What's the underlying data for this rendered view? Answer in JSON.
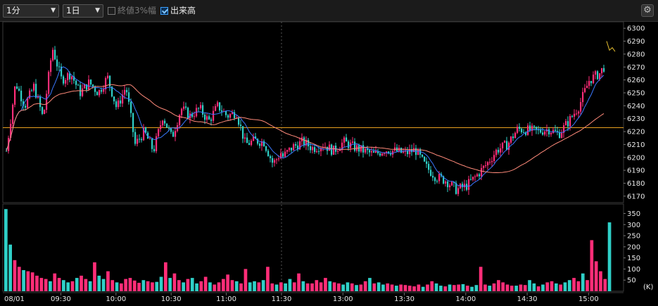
{
  "toolbar": {
    "interval_select": "1分",
    "period_select": "1日",
    "closing3pct_label": "終値3%幅",
    "volume_label": "出来高"
  },
  "chart_data": [
    {
      "type": "candlestick",
      "title": "",
      "x_tick_labels": [
        "08/01",
        "09:30",
        "10:00",
        "10:30",
        "11:00",
        "11:30",
        "13:00",
        "13:30",
        "14:00",
        "14:30",
        "15:00"
      ],
      "y_tick_labels": [
        "6300",
        "6290",
        "6280",
        "6270",
        "6260",
        "6250",
        "6240",
        "6230",
        "6220",
        "6210",
        "6200",
        "6190",
        "6180",
        "6170"
      ],
      "ylim": [
        6165,
        6305
      ],
      "reference_line": 6223,
      "close_path": [
        [
          "09:00",
          6205
        ],
        [
          "09:05",
          6258
        ],
        [
          "09:10",
          6240
        ],
        [
          "09:15",
          6255
        ],
        [
          "09:20",
          6230
        ],
        [
          "09:25",
          6285
        ],
        [
          "09:30",
          6260
        ],
        [
          "09:35",
          6265
        ],
        [
          "09:40",
          6250
        ],
        [
          "09:45",
          6258
        ],
        [
          "09:50",
          6250
        ],
        [
          "09:55",
          6262
        ],
        [
          "10:00",
          6238
        ],
        [
          "10:05",
          6255
        ],
        [
          "10:10",
          6210
        ],
        [
          "10:15",
          6220
        ],
        [
          "10:20",
          6205
        ],
        [
          "10:25",
          6232
        ],
        [
          "10:30",
          6215
        ],
        [
          "10:35",
          6238
        ],
        [
          "10:40",
          6232
        ],
        [
          "10:45",
          6238
        ],
        [
          "10:50",
          6228
        ],
        [
          "10:55",
          6240
        ],
        [
          "11:00",
          6232
        ],
        [
          "11:05",
          6235
        ],
        [
          "11:10",
          6210
        ],
        [
          "11:15",
          6213
        ],
        [
          "11:20",
          6212
        ],
        [
          "11:25",
          6195
        ],
        [
          "11:30",
          6205
        ],
        [
          "11:35",
          6195
        ],
        [
          "12:30",
          6200
        ],
        [
          "12:35",
          6208
        ],
        [
          "12:40",
          6212
        ],
        [
          "12:45",
          6207
        ],
        [
          "12:50",
          6210
        ],
        [
          "12:55",
          6205
        ],
        [
          "13:00",
          6212
        ],
        [
          "13:05",
          6208
        ],
        [
          "13:10",
          6205
        ],
        [
          "13:15",
          6202
        ],
        [
          "13:20",
          6206
        ],
        [
          "13:25",
          6205
        ],
        [
          "13:30",
          6203
        ],
        [
          "13:35",
          6206
        ],
        [
          "13:40",
          6193
        ],
        [
          "13:45",
          6185
        ],
        [
          "13:50",
          6182
        ],
        [
          "13:55",
          6175
        ],
        [
          "14:00",
          6178
        ],
        [
          "14:05",
          6186
        ],
        [
          "14:10",
          6195
        ],
        [
          "14:15",
          6206
        ],
        [
          "14:20",
          6210
        ],
        [
          "14:25",
          6222
        ],
        [
          "14:30",
          6221
        ],
        [
          "14:35",
          6220
        ],
        [
          "14:40",
          6222
        ],
        [
          "14:45",
          6218
        ],
        [
          "14:50",
          6228
        ],
        [
          "14:55",
          6240
        ],
        [
          "15:00",
          6260
        ],
        [
          "15:05",
          6265
        ],
        [
          "15:10",
          6277
        ],
        [
          "15:15",
          6295
        ],
        [
          "15:20",
          6288
        ],
        [
          "15:25",
          6285
        ]
      ]
    },
    {
      "type": "bar",
      "title": "",
      "y_tick_labels": [
        "350",
        "300",
        "250",
        "200",
        "150",
        "100",
        "50"
      ],
      "unit_label": "(K)",
      "ylim": [
        0,
        380
      ],
      "values": [
        370,
        210,
        140,
        110,
        95,
        90,
        85,
        70,
        60,
        55,
        45,
        80,
        60,
        50,
        40,
        45,
        60,
        70,
        55,
        45,
        130,
        70,
        55,
        90,
        50,
        40,
        35,
        55,
        60,
        48,
        38,
        50,
        45,
        40,
        42,
        65,
        130,
        60,
        80,
        50,
        40,
        55,
        60,
        35,
        45,
        65,
        40,
        30,
        40,
        55,
        75,
        50,
        45,
        35,
        100,
        40,
        45,
        40,
        50,
        110,
        35,
        30,
        40,
        35,
        55,
        40,
        80,
        45,
        35,
        35,
        50,
        40,
        60,
        45,
        40,
        35,
        30,
        40,
        35,
        28,
        30,
        45,
        60,
        35,
        40,
        30,
        35,
        30,
        25,
        30,
        28,
        25,
        22,
        30,
        20,
        30,
        45,
        35,
        25,
        22,
        30,
        28,
        30,
        32,
        25,
        20,
        28,
        110,
        30,
        25,
        35,
        50,
        40,
        30,
        25,
        25,
        30,
        28,
        50,
        35,
        22,
        30,
        40,
        45,
        35,
        30,
        40,
        50,
        60,
        45,
        80,
        50,
        230,
        135,
        90,
        55,
        310
      ]
    }
  ]
}
